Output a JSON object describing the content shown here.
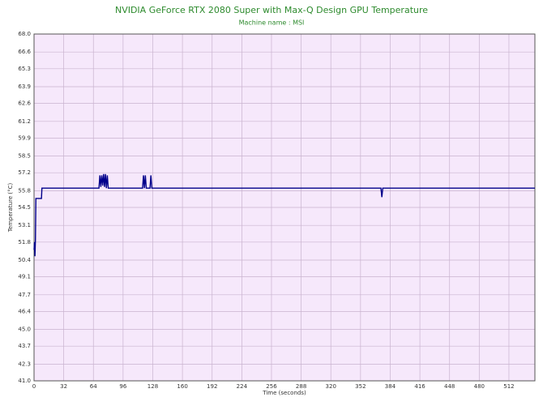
{
  "chart_data": {
    "type": "line",
    "title": "NVIDIA GeForce RTX 2080 Super with Max-Q Design GPU Temperature",
    "subtitle": "Machine name : MSI",
    "x_label": "Time (seconds)",
    "y_label": "Temperature (°C)",
    "x": [
      0,
      0.5,
      1,
      1.5,
      2,
      8,
      8.5,
      70,
      71,
      72,
      73,
      74,
      75,
      76,
      77,
      78,
      79,
      80,
      117,
      118,
      119,
      120,
      121,
      125,
      126,
      127,
      374,
      375,
      376,
      540
    ],
    "series": [
      {
        "name": "GPU Temperature",
        "color": "#00008b",
        "values": [
          51.2,
          51.8,
          50.7,
          52.0,
          55.2,
          55.2,
          56.0,
          56.0,
          57.0,
          56.1,
          57.0,
          56.2,
          57.1,
          56.1,
          57.1,
          56.0,
          57.0,
          56.0,
          56.0,
          57.0,
          56.0,
          57.0,
          56.0,
          56.0,
          57.0,
          56.0,
          56.0,
          55.3,
          56.0,
          56.0
        ]
      }
    ],
    "xlim": [
      0,
      540
    ],
    "xticks": [
      0,
      32,
      64,
      96,
      128,
      160,
      192,
      224,
      256,
      288,
      320,
      352,
      384,
      416,
      448,
      480,
      512
    ],
    "ylim": [
      41,
      68
    ],
    "yticks": [
      {
        "value": 41,
        "label": "41.0"
      },
      42.3,
      43.7,
      {
        "value": 45,
        "label": "45.0"
      },
      46.4,
      47.7,
      49.1,
      50.4,
      51.8,
      53.1,
      54.5,
      55.8,
      57.2,
      58.5,
      59.9,
      61.2,
      62.6,
      63.9,
      65.3,
      66.6,
      {
        "value": 68,
        "label": "68.0"
      }
    ],
    "grid": true
  }
}
